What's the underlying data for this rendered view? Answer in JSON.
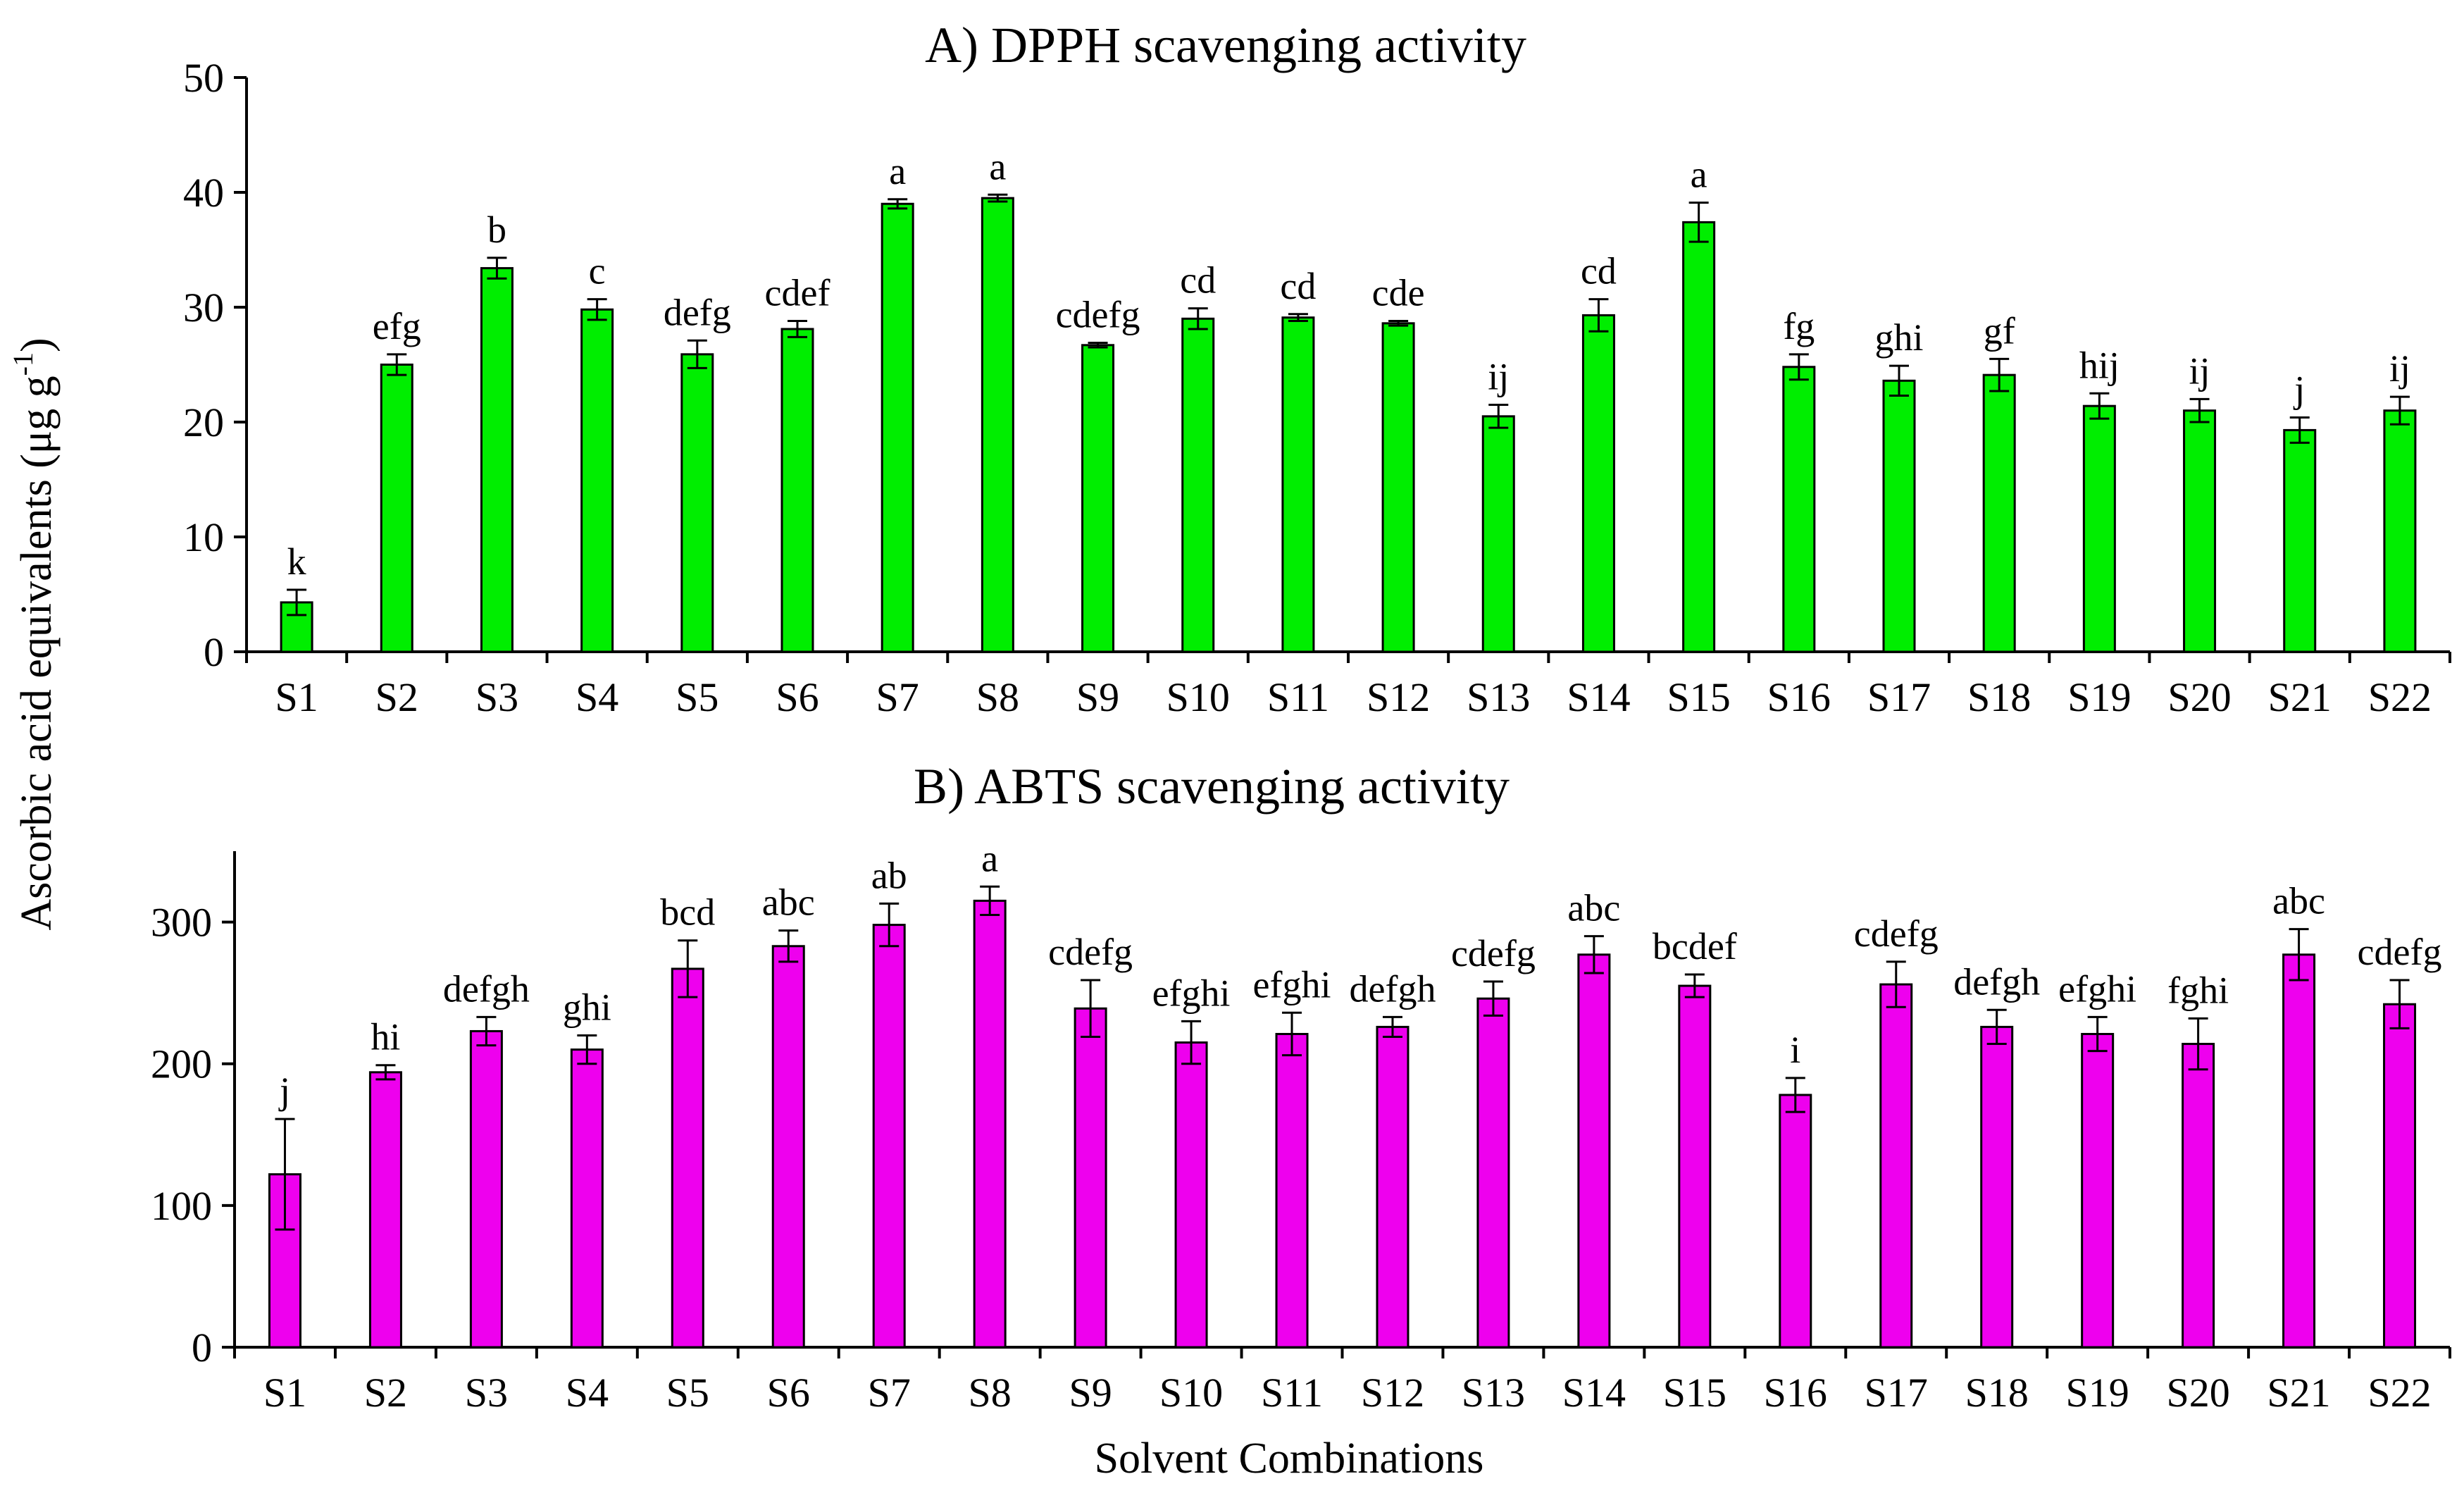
{
  "y_axis_label_main": "Ascorbic acid equivalents (μg g",
  "y_axis_label_sup": "-1",
  "y_axis_label_end": ")",
  "x_axis_label": "Solvent Combinations",
  "chart_data": [
    {
      "type": "bar",
      "title": "A) DPPH scavenging activity",
      "color": "#00ee00",
      "xlabel": "",
      "ylim": [
        0,
        50
      ],
      "yticks": [
        0,
        10,
        20,
        30,
        40,
        50
      ],
      "categories": [
        "S1",
        "S2",
        "S3",
        "S4",
        "S5",
        "S6",
        "S7",
        "S8",
        "S9",
        "S10",
        "S11",
        "S12",
        "S13",
        "S14",
        "S15",
        "S16",
        "S17",
        "S18",
        "S19",
        "S20",
        "S21",
        "S22"
      ],
      "values": [
        4.3,
        25.0,
        33.4,
        29.8,
        25.9,
        28.1,
        39.0,
        39.5,
        26.7,
        29.0,
        29.1,
        28.6,
        20.5,
        29.3,
        37.4,
        24.8,
        23.6,
        24.1,
        21.4,
        21.0,
        19.3,
        21.0
      ],
      "errors": [
        1.1,
        0.9,
        0.9,
        0.9,
        1.2,
        0.7,
        0.4,
        0.3,
        0.2,
        0.9,
        0.3,
        0.2,
        1.0,
        1.4,
        1.7,
        1.1,
        1.3,
        1.4,
        1.1,
        1.0,
        1.1,
        1.2
      ],
      "labels": [
        "k",
        "efg",
        "b",
        "c",
        "defg",
        "cdef",
        "a",
        "a",
        "cdefg",
        "cd",
        "cd",
        "cde",
        "ij",
        "cd",
        "a",
        "fg",
        "ghi",
        "gf",
        "hij",
        "ij",
        "j",
        "ij"
      ]
    },
    {
      "type": "bar",
      "title": "B) ABTS scavenging activity",
      "color": "#ee00ee",
      "xlabel": "Solvent Combinations",
      "ylim": [
        0,
        350
      ],
      "yticks": [
        0,
        100,
        200,
        300
      ],
      "categories": [
        "S1",
        "S2",
        "S3",
        "S4",
        "S5",
        "S6",
        "S7",
        "S8",
        "S9",
        "S10",
        "S11",
        "S12",
        "S13",
        "S14",
        "S15",
        "S16",
        "S17",
        "S18",
        "S19",
        "S20",
        "S21",
        "S22"
      ],
      "values": [
        122,
        194,
        223,
        210,
        267,
        283,
        298,
        315,
        239,
        215,
        221,
        226,
        246,
        277,
        255,
        178,
        256,
        226,
        221,
        214,
        277,
        242
      ],
      "errors": [
        39,
        5,
        10,
        10,
        20,
        11,
        15,
        10,
        20,
        15,
        15,
        7,
        12,
        13,
        8,
        12,
        16,
        12,
        12,
        18,
        18,
        17
      ],
      "labels": [
        "j",
        "hi",
        "defgh",
        "ghi",
        "bcd",
        "abc",
        "ab",
        "a",
        "cdefg",
        "efghi",
        "efghi",
        "defgh",
        "cdefg",
        "abc",
        "bcdef",
        "i",
        "cdefg",
        "defgh",
        "efghi",
        "fghi",
        "abc",
        "cdefg"
      ]
    }
  ]
}
